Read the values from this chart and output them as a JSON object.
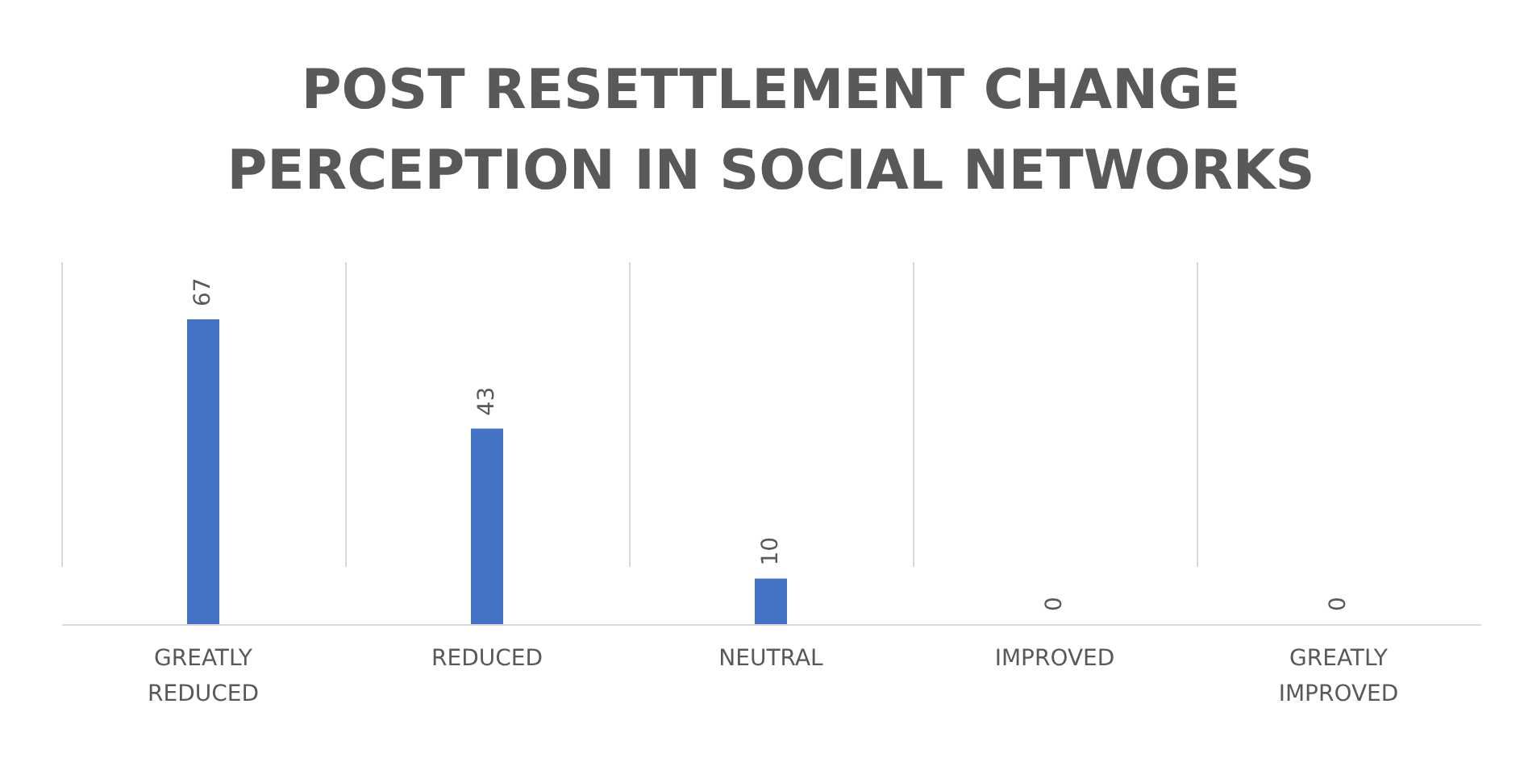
{
  "chart_data": {
    "type": "bar",
    "title": [
      "POST RESETTLEMENT CHANGE",
      "PERCEPTION IN SOCIAL NETWORKS"
    ],
    "categories": [
      "GREATLY REDUCED",
      "REDUCED",
      "NEUTRAL",
      "IMPROVED",
      "GREATLY IMPROVED"
    ],
    "values": [
      67,
      43,
      10,
      0,
      0
    ],
    "color": "#4472c4",
    "data_labels": true,
    "grid": "x",
    "tick_labels": "x"
  }
}
